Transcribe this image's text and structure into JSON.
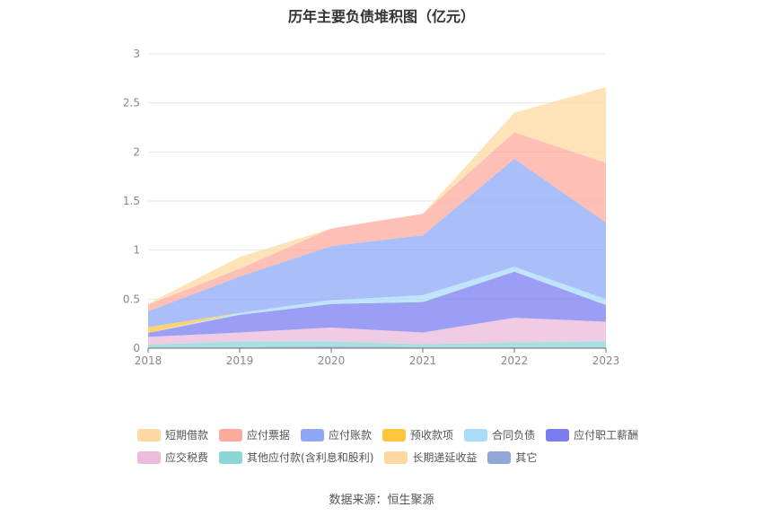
{
  "chart_data": {
    "type": "area",
    "stacked": true,
    "title": "历年主要负债堆积图（亿元）",
    "source": "数据来源：恒生聚源",
    "x": [
      "2018",
      "2019",
      "2020",
      "2021",
      "2022",
      "2023"
    ],
    "ylim": [
      0,
      3
    ],
    "yticks": [
      "0",
      "0.5",
      "1",
      "1.5",
      "2",
      "2.5",
      "3"
    ],
    "grid": true,
    "legend_position": "bottom",
    "series": [
      {
        "name": "其它",
        "color": "#91a8d6",
        "values": [
          0.005,
          0.01,
          0.02,
          0.01,
          0.01,
          0.01
        ]
      },
      {
        "name": "长期递延收益",
        "color": "#fdd9a1",
        "values": [
          0.0,
          0.0,
          0.0,
          0.0,
          0.0,
          0.0
        ]
      },
      {
        "name": "其他应付款(含利息和股利)",
        "color": "#8ad6d6",
        "values": [
          0.03,
          0.06,
          0.05,
          0.03,
          0.05,
          0.06
        ]
      },
      {
        "name": "应交税费",
        "color": "#ebbbdb",
        "values": [
          0.08,
          0.09,
          0.14,
          0.12,
          0.25,
          0.2
        ]
      },
      {
        "name": "应付职工薪酬",
        "color": "#7b7cf0",
        "values": [
          0.04,
          0.18,
          0.24,
          0.31,
          0.47,
          0.17
        ]
      },
      {
        "name": "合同负债",
        "color": "#a8dcf7",
        "values": [
          0.0,
          0.02,
          0.04,
          0.07,
          0.05,
          0.06
        ]
      },
      {
        "name": "预收款项",
        "color": "#ffc53d",
        "values": [
          0.06,
          0.0,
          0.0,
          0.0,
          0.0,
          0.0
        ]
      },
      {
        "name": "应付账款",
        "color": "#8ea8f7",
        "values": [
          0.16,
          0.37,
          0.55,
          0.61,
          1.1,
          0.78
        ]
      },
      {
        "name": "应付票据",
        "color": "#fca99e",
        "values": [
          0.07,
          0.08,
          0.18,
          0.22,
          0.27,
          0.61
        ]
      },
      {
        "name": "短期借款",
        "color": "#fdd9a1",
        "values": [
          0.01,
          0.12,
          0.0,
          0.0,
          0.2,
          0.77
        ]
      }
    ],
    "legend": [
      [
        "短期借款",
        "应付票据",
        "应付账款",
        "预收款项",
        "合同负债",
        "应付职工薪酬"
      ],
      [
        "应交税费",
        "其他应付款(含利息和股利)",
        "长期递延收益",
        "其它"
      ]
    ]
  }
}
